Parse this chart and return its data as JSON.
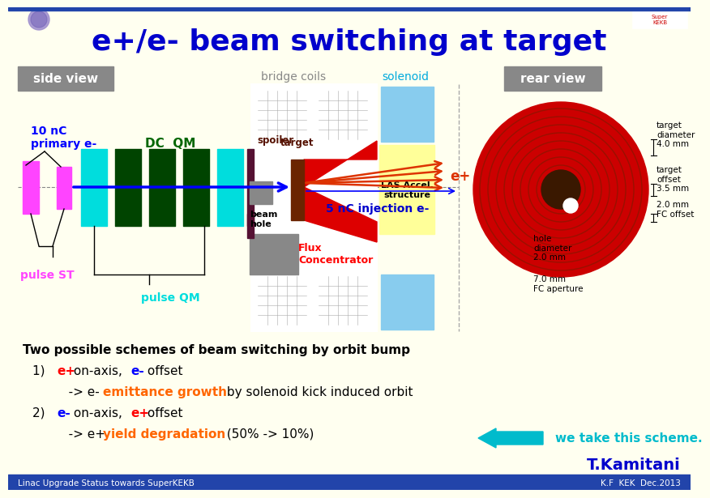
{
  "title": "e+/e- beam switching at target",
  "title_color": "#0000cc",
  "bg_color": "#fffff0",
  "side_view_label": "side view",
  "rear_view_label": "rear view",
  "bridge_coils_label": "bridge coils",
  "solenoid_label": "solenoid",
  "dc_qm_label": "DC  QM",
  "primary_label": "10 nC\nprimary e-",
  "pulse_st_label": "pulse ST",
  "pulse_qm_label": "pulse QM",
  "spoiler_label": "spoiler",
  "target_label": "target",
  "beam_hole_label": "beam\nhole",
  "flux_label": "Flux\nConcentrator",
  "las_label": "LAS Accel.\nstructure",
  "eplus_label": "e+",
  "injection_label": "5 nC injection e-",
  "target_diam_label": "target\ndiameter\n4.0 mm",
  "target_offset_label": "target\noffset\n3.5 mm",
  "fc_offset_label": "2.0 mm\nFC offset",
  "hole_diam_label": "hole\ndiameter\n2.0 mm",
  "fc_aperture_label": "7.0 mm\nFC aperture",
  "text1": "Two possible schemes of beam switching by orbit bump",
  "text2_num": "1)  ",
  "text2a": "e+",
  "text2b": " on-axis, ",
  "text2c": "e-",
  "text2d": " offset",
  "text3": "   -> e- ",
  "text3b": "emittance growth",
  "text3c": " by solenoid kick induced orbit",
  "text4_num": "2)  ",
  "text4a": "e-",
  "text4b": " on-axis, ",
  "text4c": "e+",
  "text4d": " offset",
  "text5": "   -> e+ ",
  "text5b": "yield degradation",
  "text5c": " (50% -> 10%)",
  "we_take": "we take this scheme.",
  "author": "T.Kamitani",
  "footer_left": "Linac Upgrade Status towards SuperKEKB",
  "footer_right": "K.F  KEK  Dec.2013"
}
